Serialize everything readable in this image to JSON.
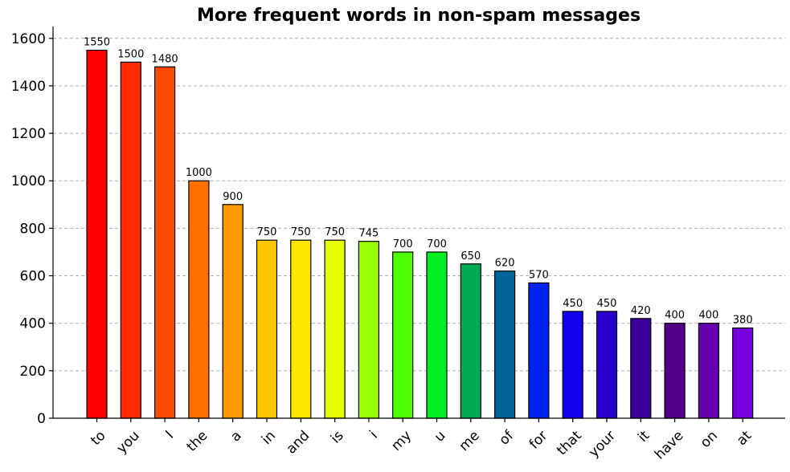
{
  "chart_data": {
    "type": "bar",
    "title": "More frequent words in non-spam messages",
    "xlabel": "",
    "ylabel": "",
    "categories": [
      "to",
      "you",
      "I",
      "the",
      "a",
      "in",
      "and",
      "is",
      "i",
      "my",
      "u",
      "me",
      "of",
      "for",
      "that",
      "your",
      "it",
      "have",
      "on",
      "at"
    ],
    "values": [
      1550,
      1500,
      1480,
      1000,
      900,
      750,
      750,
      750,
      745,
      700,
      700,
      650,
      620,
      570,
      450,
      450,
      420,
      400,
      400,
      380
    ],
    "value_labels": [
      "1550",
      "1500",
      "1480",
      "1000",
      "900",
      "750",
      "750",
      "750",
      "745",
      "700",
      "700",
      "650",
      "620",
      "570",
      "450",
      "450",
      "420",
      "400",
      "400",
      "380"
    ],
    "colors": [
      "#ff0000",
      "#ff2a00",
      "#ff4a00",
      "#ff7000",
      "#ff9a00",
      "#ffc400",
      "#ffe600",
      "#e6ff00",
      "#99ff00",
      "#4dff00",
      "#00ee22",
      "#00aa55",
      "#006699",
      "#0022ee",
      "#1200ee",
      "#2a00cc",
      "#3a0099",
      "#550088",
      "#6600aa",
      "#7700dd"
    ],
    "ylim": [
      0,
      1650
    ],
    "yticks": [
      0,
      200,
      400,
      600,
      800,
      1000,
      1200,
      1400,
      1600
    ],
    "ytick_labels": [
      "0",
      "200",
      "400",
      "600",
      "800",
      "1000",
      "1200",
      "1400",
      "1600"
    ],
    "grid": "horizontal-dashed",
    "legend": "none"
  }
}
